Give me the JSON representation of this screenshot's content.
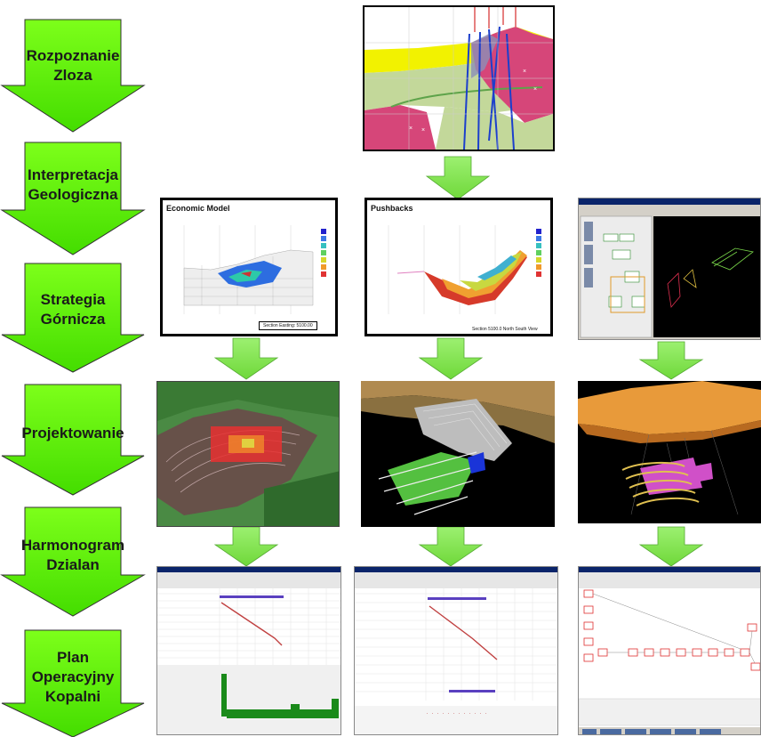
{
  "colors": {
    "arrow_fill": "#66ff00",
    "arrow_dark": "#22aa00",
    "down_arrow": "#88ee55",
    "outline": "#000000"
  },
  "steps": [
    {
      "label": "Rozpoznanie\nZloza"
    },
    {
      "label": "Interpretacja\nGeologiczna"
    },
    {
      "label": "Strategia\nGórnicza"
    },
    {
      "label": "Projektowanie"
    },
    {
      "label": "Harmonogram\nDzialan"
    },
    {
      "label": "Plan\nOperacyjny\nKopalni"
    }
  ],
  "panels": {
    "economic_model": {
      "title": "Economic Model",
      "footer": "Section Easting: 5100.00"
    },
    "pushbacks": {
      "title": "Pushbacks",
      "footer": "Section 5100.0 North South View"
    }
  }
}
